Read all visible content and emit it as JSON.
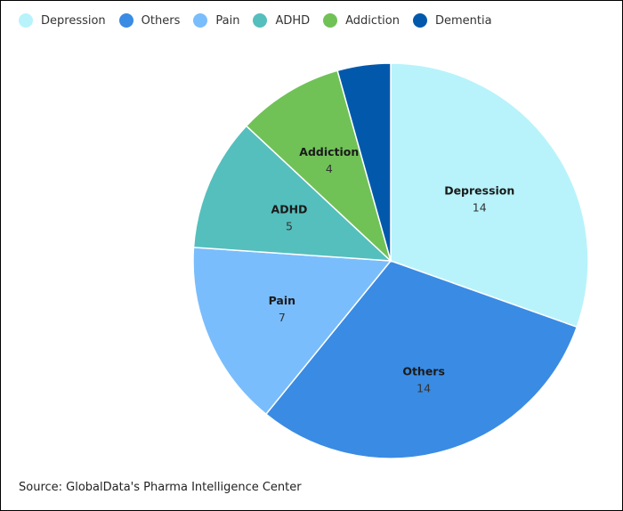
{
  "chart_data": {
    "type": "pie",
    "slices": [
      {
        "name": "Depression",
        "value": 14,
        "color": "#B8F3FB"
      },
      {
        "name": "Others",
        "value": 14,
        "color": "#3A8BE3"
      },
      {
        "name": "Pain",
        "value": 7,
        "color": "#7ABDFC"
      },
      {
        "name": "ADHD",
        "value": 5,
        "color": "#55BFBD"
      },
      {
        "name": "Addiction",
        "value": 4,
        "color": "#70C257"
      },
      {
        "name": "Dementia",
        "value": 2,
        "color": "#0259AC"
      }
    ],
    "legend_position": "top",
    "source": "Source: GlobalData's Pharma Intelligence Center"
  }
}
